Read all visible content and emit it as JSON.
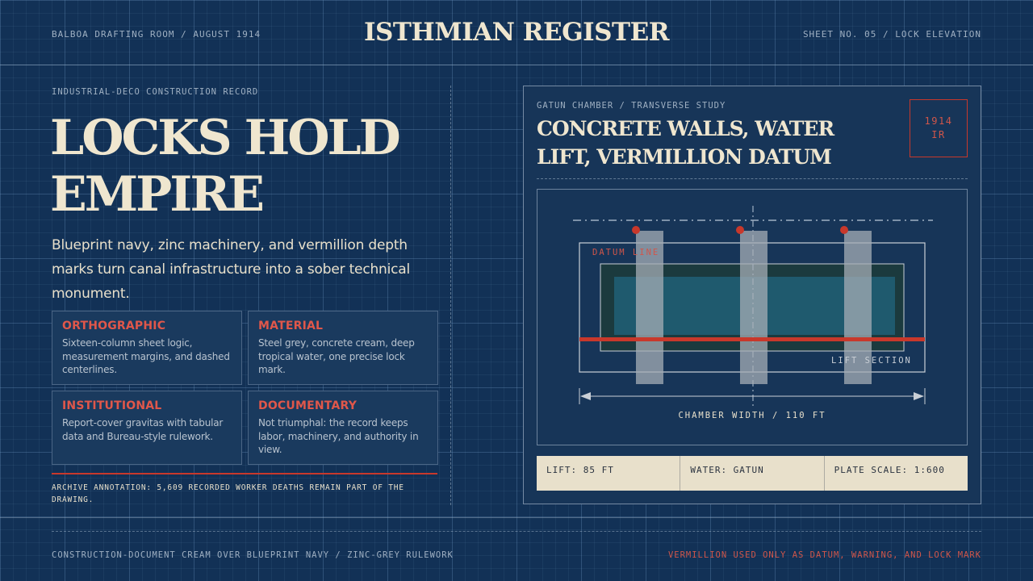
{
  "header": {
    "left": "BALBOA DRAFTING ROOM / AUGUST 1914",
    "title": "ISTHMIAN REGISTER",
    "right": "SHEET NO. 05 / LOCK ELEVATION"
  },
  "left": {
    "eyebrow": "INDUSTRIAL-DECO CONSTRUCTION RECORD",
    "hero_line1": "LOCKS HOLD",
    "hero_line2": "EMPIRE",
    "lede": "Blueprint navy, zinc machinery, and vermillion depth marks turn canal infrastructure into a sober technical monument.",
    "cards": [
      {
        "title": "ORTHOGRAPHIC",
        "body": "Sixteen-column sheet logic, measurement margins, and dashed centerlines."
      },
      {
        "title": "MATERIAL",
        "body": "Steel grey, concrete cream, deep tropical water, one precise lock mark."
      },
      {
        "title": "INSTITUTIONAL",
        "body": "Report-cover gravitas with tabular data and Bureau-style rulework."
      },
      {
        "title": "DOCUMENTARY",
        "body": "Not triumphal: the record keeps labor, machinery, and authority in view."
      }
    ],
    "annotation": "ARCHIVE ANNOTATION: 5,609 RECORDED WORKER DEATHS REMAIN PART OF THE DRAWING."
  },
  "panel": {
    "eyebrow": "GATUN CHAMBER / TRANSVERSE STUDY",
    "title": "CONCRETE WALLS, WATER LIFT, VERMILLION DATUM",
    "stamp_line1": "1914",
    "stamp_line2": "IR",
    "drawing": {
      "datum_label": "DATUM LINE",
      "section_label": "LIFT SECTION",
      "width_label": "CHAMBER WIDTH / 110 FT"
    },
    "stats": [
      "LIFT: 85 FT",
      "WATER: GATUN",
      "PLATE SCALE: 1:600"
    ]
  },
  "footer": {
    "left": "CONSTRUCTION-DOCUMENT CREAM OVER BLUEPRINT NAVY / ZINC-GREY RULEWORK",
    "right": "VERMILLION USED ONLY AS DATUM, WARNING, AND LOCK MARK"
  },
  "colors": {
    "navy": "#123156",
    "cream": "#efe6cf",
    "vermillion": "#c8382b",
    "zinc": "#9fb0c2",
    "water": "#1f5a6e"
  }
}
